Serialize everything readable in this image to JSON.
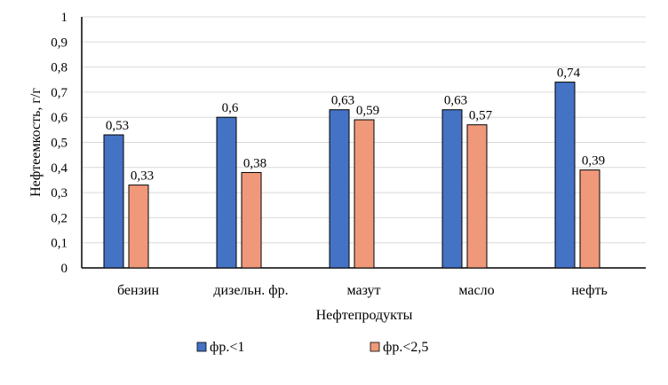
{
  "chart_data": {
    "type": "bar",
    "title": "",
    "xlabel": "Нефтепродукты",
    "ylabel": "Нефтеемкость, г/г",
    "ylim": [
      0,
      1
    ],
    "yticks": [
      "0",
      "0,1",
      "0,2",
      "0,3",
      "0,4",
      "0,5",
      "0,6",
      "0,7",
      "0,8",
      "0,9",
      "1"
    ],
    "grid": true,
    "legend_position": "bottom",
    "categories": [
      "бензин",
      "дизельн. фр.",
      "мазут",
      "масло",
      "нефть"
    ],
    "series": [
      {
        "name": "фр.<1",
        "color": "#4472C4",
        "values": [
          0.53,
          0.6,
          0.63,
          0.63,
          0.74
        ],
        "labels": [
          "0,53",
          "0,6",
          "0,63",
          "0,63",
          "0,74"
        ]
      },
      {
        "name": "фр.<2,5",
        "color": "#F0997A",
        "values": [
          0.33,
          0.38,
          0.59,
          0.57,
          0.39
        ],
        "labels": [
          "0,33",
          "0,38",
          "0,59",
          "0,57",
          "0,39"
        ]
      }
    ]
  }
}
